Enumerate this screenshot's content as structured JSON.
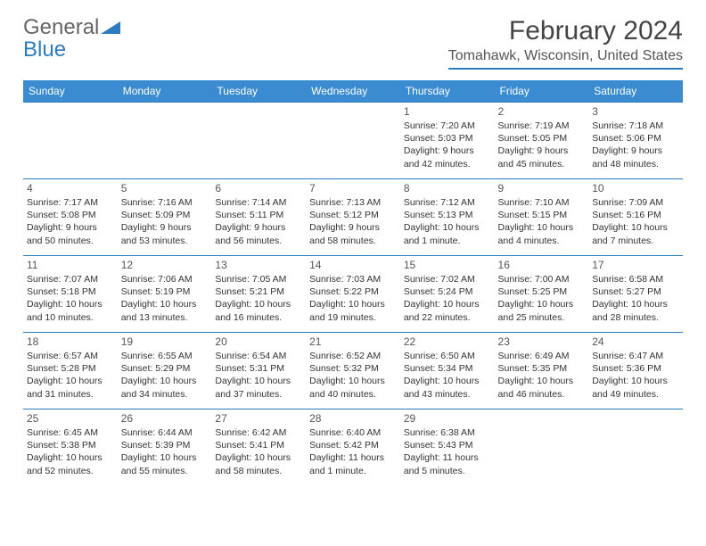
{
  "logo": {
    "text_general": "General",
    "text_blue": "Blue"
  },
  "title": {
    "month": "February 2024",
    "location": "Tomahawk, Wisconsin, United States"
  },
  "colors": {
    "header_bg": "#3a8bcf",
    "header_text": "#ffffff",
    "day_border": "#2b7dc0",
    "body_text": "#333333",
    "title_text": "#444444",
    "logo_gray": "#666666",
    "logo_blue": "#2b7dc0",
    "background": "#ffffff"
  },
  "typography": {
    "month_title_fontsize": 30,
    "location_fontsize": 16,
    "dayheader_fontsize": 12,
    "daynum_fontsize": 12,
    "daytext_fontsize": 10.5
  },
  "calendar": {
    "type": "table",
    "columns": [
      "Sunday",
      "Monday",
      "Tuesday",
      "Wednesday",
      "Thursday",
      "Friday",
      "Saturday"
    ],
    "weeks": [
      [
        null,
        null,
        null,
        null,
        {
          "n": "1",
          "sunrise": "7:20 AM",
          "sunset": "5:03 PM",
          "daylight": "9 hours and 42 minutes."
        },
        {
          "n": "2",
          "sunrise": "7:19 AM",
          "sunset": "5:05 PM",
          "daylight": "9 hours and 45 minutes."
        },
        {
          "n": "3",
          "sunrise": "7:18 AM",
          "sunset": "5:06 PM",
          "daylight": "9 hours and 48 minutes."
        }
      ],
      [
        {
          "n": "4",
          "sunrise": "7:17 AM",
          "sunset": "5:08 PM",
          "daylight": "9 hours and 50 minutes."
        },
        {
          "n": "5",
          "sunrise": "7:16 AM",
          "sunset": "5:09 PM",
          "daylight": "9 hours and 53 minutes."
        },
        {
          "n": "6",
          "sunrise": "7:14 AM",
          "sunset": "5:11 PM",
          "daylight": "9 hours and 56 minutes."
        },
        {
          "n": "7",
          "sunrise": "7:13 AM",
          "sunset": "5:12 PM",
          "daylight": "9 hours and 58 minutes."
        },
        {
          "n": "8",
          "sunrise": "7:12 AM",
          "sunset": "5:13 PM",
          "daylight": "10 hours and 1 minute."
        },
        {
          "n": "9",
          "sunrise": "7:10 AM",
          "sunset": "5:15 PM",
          "daylight": "10 hours and 4 minutes."
        },
        {
          "n": "10",
          "sunrise": "7:09 AM",
          "sunset": "5:16 PM",
          "daylight": "10 hours and 7 minutes."
        }
      ],
      [
        {
          "n": "11",
          "sunrise": "7:07 AM",
          "sunset": "5:18 PM",
          "daylight": "10 hours and 10 minutes."
        },
        {
          "n": "12",
          "sunrise": "7:06 AM",
          "sunset": "5:19 PM",
          "daylight": "10 hours and 13 minutes."
        },
        {
          "n": "13",
          "sunrise": "7:05 AM",
          "sunset": "5:21 PM",
          "daylight": "10 hours and 16 minutes."
        },
        {
          "n": "14",
          "sunrise": "7:03 AM",
          "sunset": "5:22 PM",
          "daylight": "10 hours and 19 minutes."
        },
        {
          "n": "15",
          "sunrise": "7:02 AM",
          "sunset": "5:24 PM",
          "daylight": "10 hours and 22 minutes."
        },
        {
          "n": "16",
          "sunrise": "7:00 AM",
          "sunset": "5:25 PM",
          "daylight": "10 hours and 25 minutes."
        },
        {
          "n": "17",
          "sunrise": "6:58 AM",
          "sunset": "5:27 PM",
          "daylight": "10 hours and 28 minutes."
        }
      ],
      [
        {
          "n": "18",
          "sunrise": "6:57 AM",
          "sunset": "5:28 PM",
          "daylight": "10 hours and 31 minutes."
        },
        {
          "n": "19",
          "sunrise": "6:55 AM",
          "sunset": "5:29 PM",
          "daylight": "10 hours and 34 minutes."
        },
        {
          "n": "20",
          "sunrise": "6:54 AM",
          "sunset": "5:31 PM",
          "daylight": "10 hours and 37 minutes."
        },
        {
          "n": "21",
          "sunrise": "6:52 AM",
          "sunset": "5:32 PM",
          "daylight": "10 hours and 40 minutes."
        },
        {
          "n": "22",
          "sunrise": "6:50 AM",
          "sunset": "5:34 PM",
          "daylight": "10 hours and 43 minutes."
        },
        {
          "n": "23",
          "sunrise": "6:49 AM",
          "sunset": "5:35 PM",
          "daylight": "10 hours and 46 minutes."
        },
        {
          "n": "24",
          "sunrise": "6:47 AM",
          "sunset": "5:36 PM",
          "daylight": "10 hours and 49 minutes."
        }
      ],
      [
        {
          "n": "25",
          "sunrise": "6:45 AM",
          "sunset": "5:38 PM",
          "daylight": "10 hours and 52 minutes."
        },
        {
          "n": "26",
          "sunrise": "6:44 AM",
          "sunset": "5:39 PM",
          "daylight": "10 hours and 55 minutes."
        },
        {
          "n": "27",
          "sunrise": "6:42 AM",
          "sunset": "5:41 PM",
          "daylight": "10 hours and 58 minutes."
        },
        {
          "n": "28",
          "sunrise": "6:40 AM",
          "sunset": "5:42 PM",
          "daylight": "11 hours and 1 minute."
        },
        {
          "n": "29",
          "sunrise": "6:38 AM",
          "sunset": "5:43 PM",
          "daylight": "11 hours and 5 minutes."
        },
        null,
        null
      ]
    ],
    "labels": {
      "sunrise": "Sunrise:",
      "sunset": "Sunset:",
      "daylight": "Daylight:"
    }
  }
}
